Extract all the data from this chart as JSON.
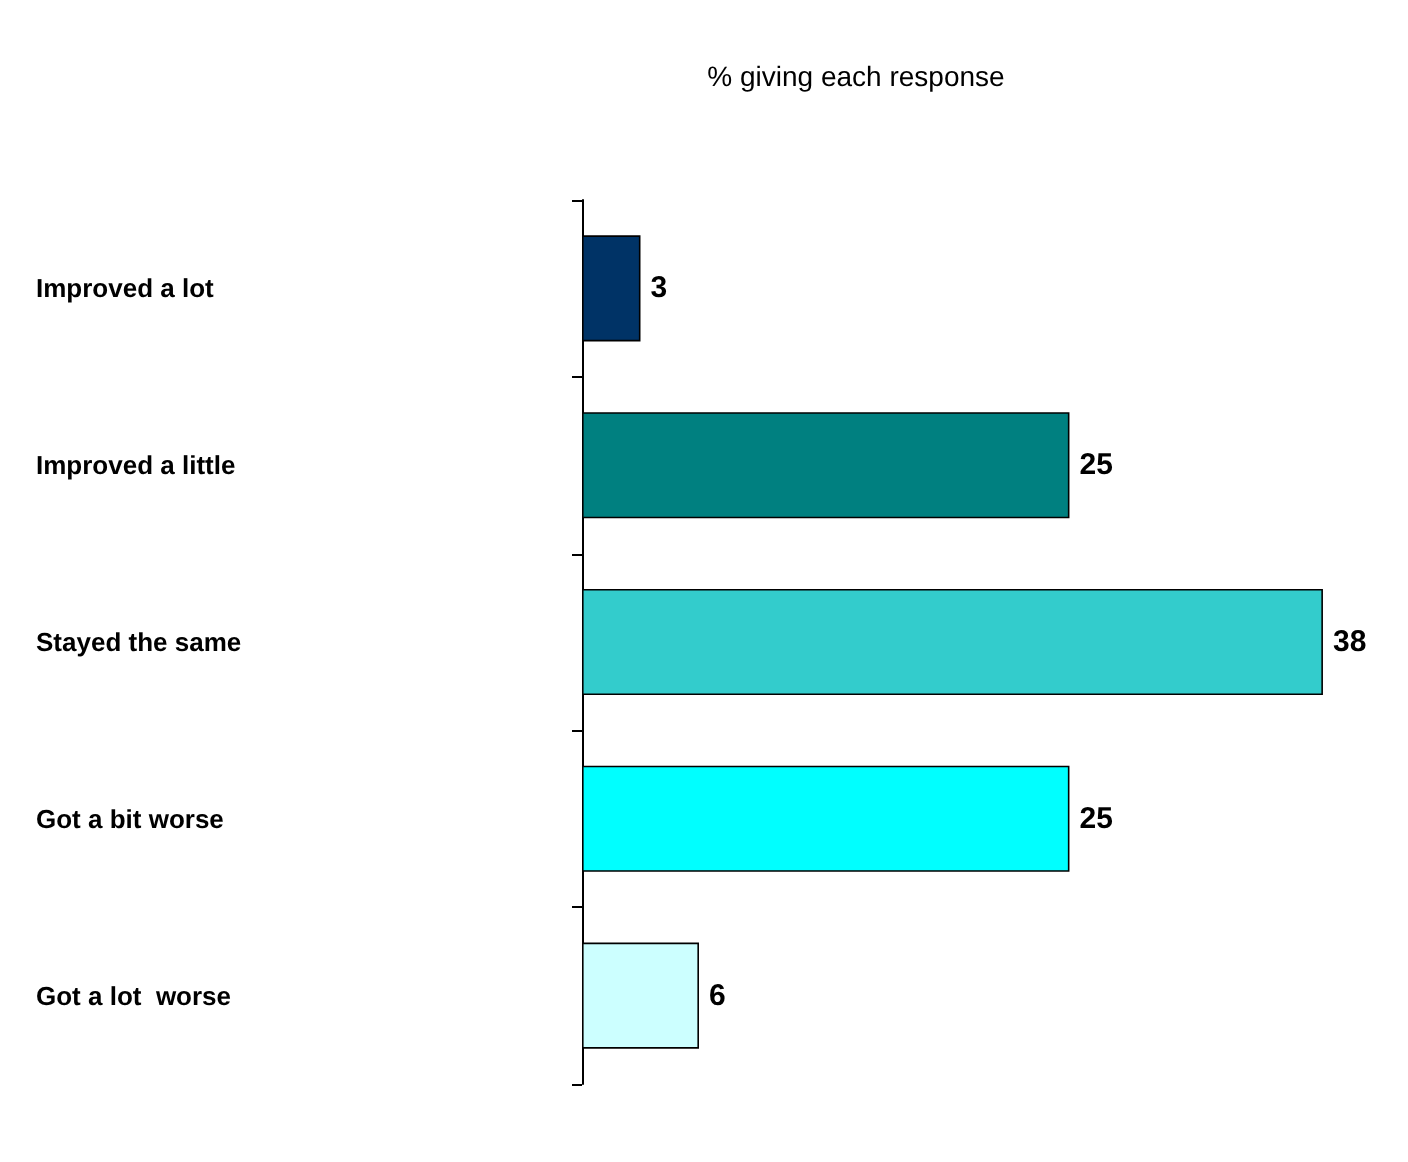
{
  "chart_data": {
    "type": "bar",
    "orientation": "horizontal",
    "title": "% giving each response",
    "categories": [
      "Improved a lot",
      "Improved a little",
      "Stayed the same",
      "Got a bit worse",
      "Got a lot  worse"
    ],
    "values": [
      3,
      25,
      38,
      25,
      6
    ],
    "colors": [
      "#003366",
      "#008080",
      "#33cccc",
      "#00ffff",
      "#ccffff"
    ],
    "data_labels": true
  }
}
